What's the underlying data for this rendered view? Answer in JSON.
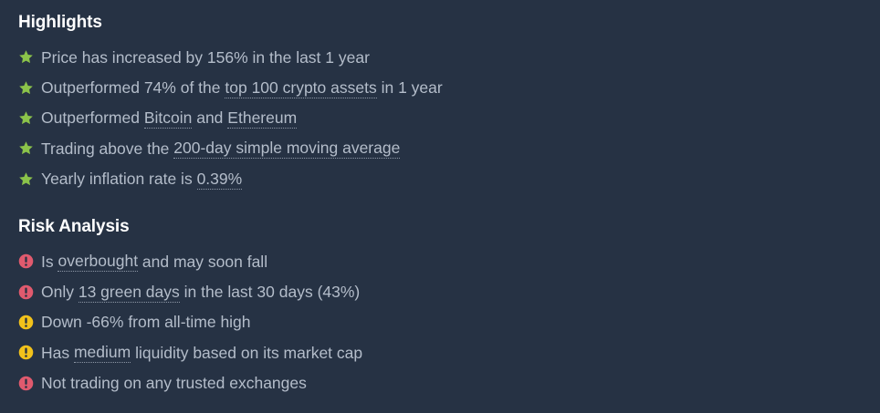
{
  "colors": {
    "background": "#263244",
    "heading": "#ffffff",
    "text": "#b4bdca",
    "star": "#8bc34a",
    "danger": "#e05a6e",
    "warning": "#f2c21b"
  },
  "highlights": {
    "title": "Highlights",
    "icon": "star-icon",
    "items": [
      {
        "before": "Price has increased by 156% in the last 1 year",
        "link": "",
        "after": ""
      },
      {
        "before": "Outperformed 74% of the ",
        "link": "top 100 crypto assets",
        "after": " in 1 year"
      },
      {
        "before": "Outperformed ",
        "link": "Bitcoin",
        "mid": " and ",
        "link2": "Ethereum",
        "after": ""
      },
      {
        "before": "Trading above the ",
        "link": "200-day simple moving average",
        "after": ""
      },
      {
        "before": "Yearly inflation rate is ",
        "link": "0.39%",
        "after": ""
      }
    ]
  },
  "risk_analysis": {
    "title": "Risk Analysis",
    "items": [
      {
        "level": "danger",
        "icon": "exclamation-circle-icon",
        "before": "Is ",
        "link": "overbought",
        "after": " and may soon fall"
      },
      {
        "level": "danger",
        "icon": "exclamation-circle-icon",
        "before": "Only ",
        "link": "13 green days",
        "after": " in the last 30 days (43%)"
      },
      {
        "level": "warning",
        "icon": "exclamation-circle-icon",
        "before": "Down -66% from all-time high",
        "link": "",
        "after": ""
      },
      {
        "level": "warning",
        "icon": "exclamation-circle-icon",
        "before": "Has ",
        "link": "medium",
        "after": " liquidity based on its market cap"
      },
      {
        "level": "danger",
        "icon": "exclamation-circle-icon",
        "before": "Not trading on any trusted exchanges",
        "link": "",
        "after": ""
      }
    ]
  }
}
